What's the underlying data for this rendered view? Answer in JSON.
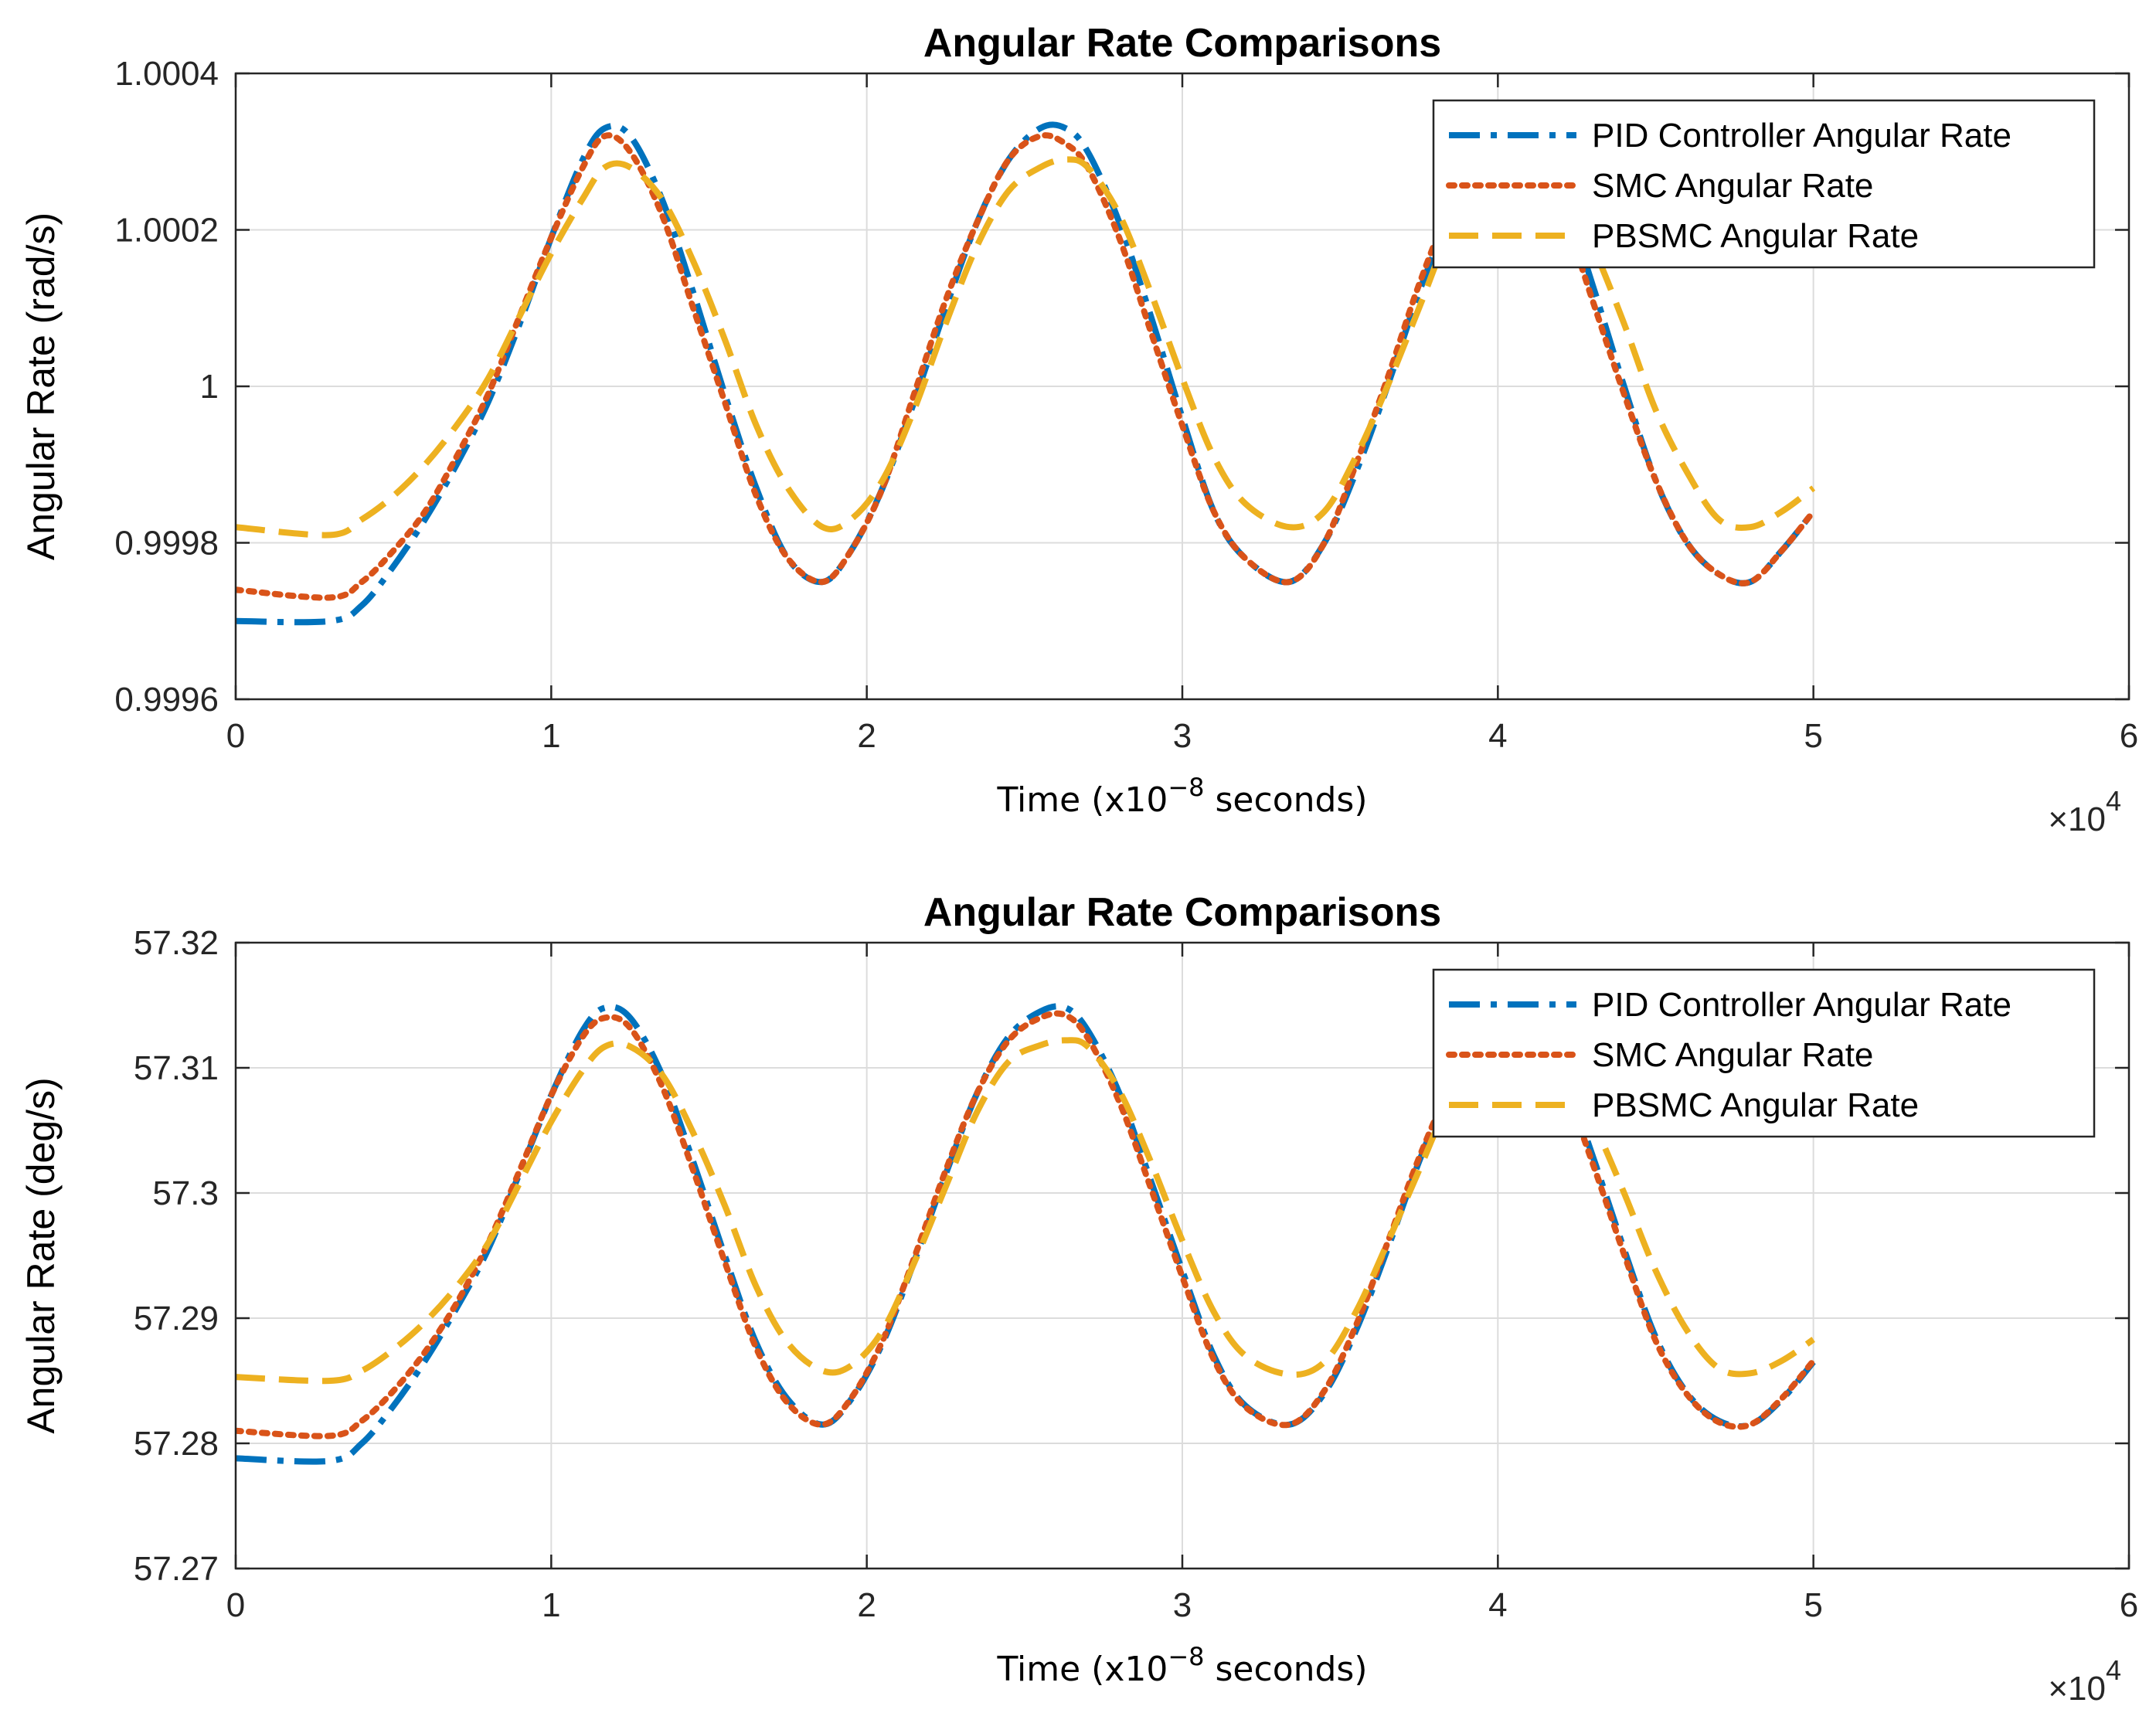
{
  "chart_data": [
    {
      "type": "line",
      "title": "Angular Rate Comparisons",
      "xlabel_prefix": "Time (x10",
      "xlabel_exp": "−8",
      "xlabel_suffix": " seconds)",
      "ylabel": "Angular Rate (rad/s)",
      "x_multiplier_base": "×10",
      "x_multiplier_exp": "4",
      "xlim": [
        0,
        6
      ],
      "ylim": [
        0.9996,
        1.0004
      ],
      "xticks": [
        0,
        1,
        2,
        3,
        4,
        5,
        6
      ],
      "xtick_labels": [
        "0",
        "1",
        "2",
        "3",
        "4",
        "5",
        "6"
      ],
      "yticks": [
        0.9996,
        0.9998,
        1.0,
        1.0002,
        1.0004
      ],
      "ytick_labels": [
        "0.9996",
        "0.9998",
        "1",
        "1.0002",
        "1.0004"
      ],
      "grid": true,
      "legend_position": "top-right",
      "x": [
        0,
        0.3,
        0.4,
        0.5,
        0.6,
        0.7,
        0.8,
        0.9,
        1.0,
        1.1,
        1.17,
        1.25,
        1.35,
        1.45,
        1.55,
        1.65,
        1.75,
        1.86,
        1.95,
        2.05,
        2.15,
        2.25,
        2.35,
        2.45,
        2.55,
        2.63,
        2.7,
        2.8,
        2.9,
        3.0,
        3.1,
        3.2,
        3.34,
        3.45,
        3.55,
        3.65,
        3.75,
        3.85,
        3.95,
        4.05,
        4.1,
        4.2,
        4.3,
        4.4,
        4.5,
        4.6,
        4.7,
        4.8,
        4.9,
        5.0
      ],
      "series": [
        {
          "name": "PID Controller Angular Rate",
          "color": "#0072BD",
          "dash": "dashdot",
          "values": [
            0.9997,
            0.9997,
            0.99972,
            0.99977,
            0.99983,
            0.9999,
            0.99998,
            1.00008,
            1.00019,
            1.00029,
            1.00033,
            1.00032,
            1.00024,
            1.00012,
            0.99999,
            0.99987,
            0.99978,
            0.99975,
            0.99979,
            0.99987,
            0.99998,
            1.0001,
            1.00021,
            1.00029,
            1.00033,
            1.00033,
            1.0003,
            1.00021,
            1.00009,
            0.99996,
            0.99984,
            0.99978,
            0.99975,
            0.9998,
            0.99989,
            1.0,
            1.00012,
            1.00022,
            1.0003,
            1.00033,
            1.00032,
            1.00025,
            1.00013,
            1.0,
            0.99988,
            0.9998,
            0.99976,
            0.99975,
            0.99979,
            0.99984
          ]
        },
        {
          "name": "SMC Angular Rate",
          "color": "#D95319",
          "dash": "dotted",
          "values": [
            0.99974,
            0.99973,
            0.99975,
            0.99979,
            0.99984,
            0.99991,
            0.99999,
            1.00009,
            1.00019,
            1.00028,
            1.00032,
            1.0003,
            1.00022,
            1.0001,
            0.99998,
            0.99986,
            0.99978,
            0.99975,
            0.99979,
            0.99987,
            0.99999,
            1.00011,
            1.00021,
            1.00029,
            1.00032,
            1.00031,
            1.00028,
            1.00019,
            1.00007,
            0.99995,
            0.99984,
            0.99978,
            0.99975,
            0.9998,
            0.9999,
            1.00001,
            1.00013,
            1.00023,
            1.0003,
            1.00032,
            1.00031,
            1.00023,
            1.00011,
            0.99999,
            0.99988,
            0.9998,
            0.99976,
            0.99975,
            0.99979,
            0.99984
          ]
        },
        {
          "name": "PBSMC Angular Rate",
          "color": "#EDB120",
          "dash": "dashed",
          "values": [
            0.99982,
            0.99981,
            0.99983,
            0.99986,
            0.9999,
            0.99995,
            1.00001,
            1.00009,
            1.00017,
            1.00024,
            1.00028,
            1.00028,
            1.00024,
            1.00016,
            1.00006,
            0.99995,
            0.99987,
            0.99982,
            0.99983,
            0.99988,
            0.99997,
            1.00008,
            1.00018,
            1.00025,
            1.00028,
            1.00029,
            1.00028,
            1.00022,
            1.00012,
            1.00001,
            0.99991,
            0.99985,
            0.99982,
            0.99984,
            0.99991,
            1.0,
            1.0001,
            1.0002,
            1.00026,
            1.00029,
            1.00029,
            1.00026,
            1.00018,
            1.00008,
            0.99997,
            0.99989,
            0.99983,
            0.99982,
            0.99984,
            0.99987
          ]
        }
      ]
    },
    {
      "type": "line",
      "title": "Angular Rate Comparisons",
      "xlabel_prefix": "Time (x10",
      "xlabel_exp": "−8",
      "xlabel_suffix": " seconds)",
      "ylabel": "Angular Rate (deg/s)",
      "x_multiplier_base": "×10",
      "x_multiplier_exp": "4",
      "xlim": [
        0,
        6
      ],
      "ylim": [
        57.27,
        57.32
      ],
      "xticks": [
        0,
        1,
        2,
        3,
        4,
        5,
        6
      ],
      "xtick_labels": [
        "0",
        "1",
        "2",
        "3",
        "4",
        "5",
        "6"
      ],
      "yticks": [
        57.27,
        57.28,
        57.29,
        57.3,
        57.31,
        57.32
      ],
      "ytick_labels": [
        "57.27",
        "57.28",
        "57.29",
        "57.3",
        "57.31",
        "57.32"
      ],
      "grid": true,
      "legend_position": "top-right",
      "x": [
        0,
        0.3,
        0.4,
        0.5,
        0.6,
        0.7,
        0.8,
        0.9,
        1.0,
        1.1,
        1.17,
        1.25,
        1.35,
        1.45,
        1.55,
        1.65,
        1.75,
        1.86,
        1.95,
        2.05,
        2.15,
        2.25,
        2.35,
        2.45,
        2.55,
        2.63,
        2.7,
        2.8,
        2.9,
        3.0,
        3.1,
        3.2,
        3.34,
        3.45,
        3.55,
        3.65,
        3.75,
        3.85,
        3.95,
        4.05,
        4.1,
        4.2,
        4.3,
        4.4,
        4.5,
        4.6,
        4.7,
        4.8,
        4.9,
        5.0
      ],
      "series": [
        {
          "name": "PID Controller Angular Rate",
          "color": "#0072BD",
          "dash": "dashdot",
          "values": [
            57.2788,
            57.2786,
            57.28,
            57.283,
            57.2866,
            57.2908,
            57.2955,
            57.3016,
            57.3078,
            57.313,
            57.3148,
            57.314,
            57.3095,
            57.3025,
            57.295,
            57.288,
            57.2835,
            57.2815,
            57.2835,
            57.288,
            57.2945,
            57.3015,
            57.308,
            57.3125,
            57.3145,
            57.3148,
            57.313,
            57.308,
            57.301,
            57.2938,
            57.287,
            57.283,
            57.2815,
            57.284,
            57.289,
            57.2955,
            57.3025,
            57.3085,
            57.313,
            57.3148,
            57.3142,
            57.31,
            57.303,
            57.2955,
            57.2885,
            57.284,
            57.2818,
            57.2815,
            57.2835,
            57.2865
          ]
        },
        {
          "name": "SMC Angular Rate",
          "color": "#D95319",
          "dash": "dotted",
          "values": [
            57.281,
            57.2806,
            57.2818,
            57.2842,
            57.2873,
            57.2912,
            57.296,
            57.3018,
            57.3078,
            57.3125,
            57.314,
            57.3132,
            57.3086,
            57.3018,
            57.2945,
            57.2876,
            57.2832,
            57.2815,
            57.2836,
            57.2882,
            57.2948,
            57.3018,
            57.308,
            57.3122,
            57.314,
            57.3142,
            57.3124,
            57.3073,
            57.3004,
            57.2933,
            57.2867,
            57.2829,
            57.2815,
            57.2842,
            57.2894,
            57.296,
            57.3028,
            57.3085,
            57.3126,
            57.314,
            57.3135,
            57.3092,
            57.3024,
            57.2951,
            57.2882,
            57.2839,
            57.2817,
            57.2815,
            57.2836,
            57.2866
          ]
        },
        {
          "name": "PBSMC Angular Rate",
          "color": "#EDB120",
          "dash": "dashed",
          "values": [
            57.2853,
            57.285,
            57.2858,
            57.2875,
            57.2897,
            57.2925,
            57.296,
            57.3008,
            57.3057,
            57.3098,
            57.3117,
            57.3117,
            57.3095,
            57.3048,
            57.299,
            57.2925,
            57.288,
            57.2858,
            57.2862,
            57.289,
            57.2944,
            57.3005,
            57.3065,
            57.3105,
            57.3118,
            57.3122,
            57.3117,
            57.3082,
            57.3025,
            57.2962,
            57.2905,
            57.287,
            57.2855,
            57.2865,
            57.2905,
            57.296,
            57.3018,
            57.3075,
            57.3108,
            57.312,
            57.312,
            57.3105,
            57.3058,
            57.3,
            57.2938,
            57.289,
            57.286,
            57.2856,
            57.2866,
            57.2883
          ]
        }
      ]
    }
  ]
}
